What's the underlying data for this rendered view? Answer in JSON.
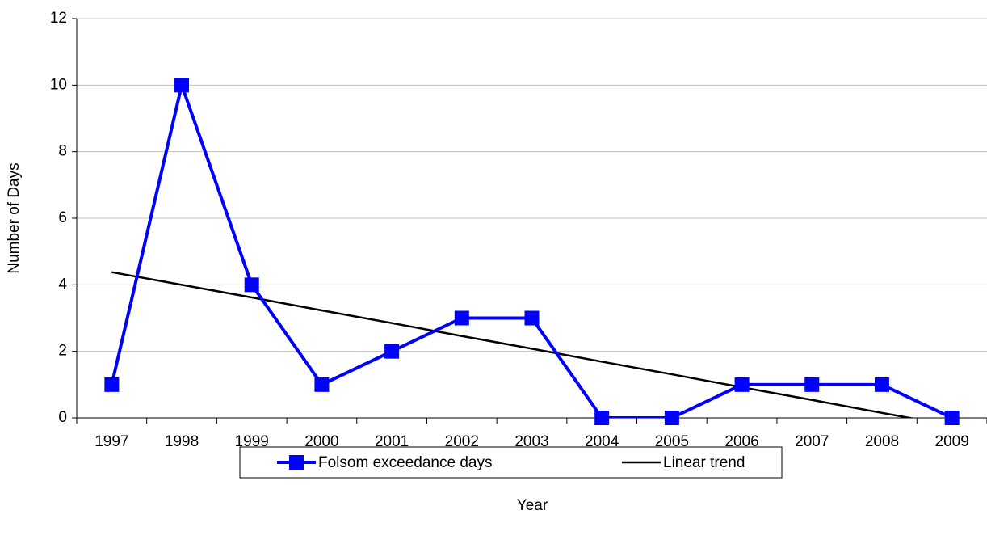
{
  "chart_data": {
    "type": "line",
    "x_label": "Year",
    "y_label": "Number of Days",
    "categories": [
      "1997",
      "1998",
      "1999",
      "2000",
      "2001",
      "2002",
      "2003",
      "2004",
      "2005",
      "2006",
      "2007",
      "2008",
      "2009"
    ],
    "series": [
      {
        "name": "Folsom exceedance days",
        "color": "#0000ff",
        "marker": "square",
        "values": [
          1,
          10,
          4,
          1,
          2,
          3,
          3,
          0,
          0,
          1,
          1,
          1,
          0
        ]
      },
      {
        "name": "Linear trend",
        "color": "#000000",
        "values": [
          4.38,
          4.0,
          3.62,
          3.23,
          2.85,
          2.46,
          2.08,
          1.69,
          1.31,
          0.92,
          0.54,
          0.15,
          -0.23
        ]
      }
    ],
    "ylim": [
      0,
      12
    ],
    "yticks": [
      0,
      2,
      4,
      6,
      8,
      10,
      12
    ],
    "grid": true
  }
}
